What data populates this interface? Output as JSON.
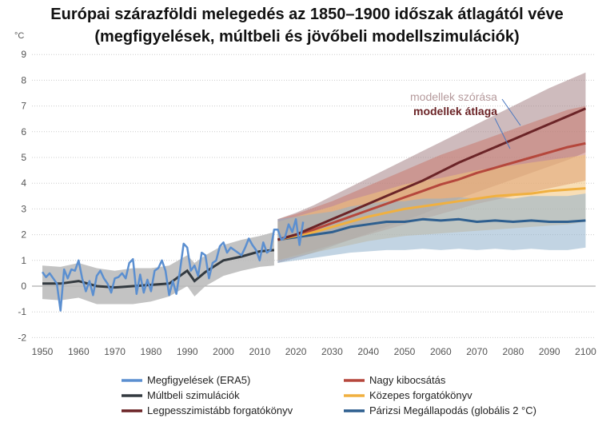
{
  "chart_data": {
    "type": "line",
    "title": "Európai szárazföldi melegedés az 1850–1900 időszak átlagától véve",
    "subtitle": "(megfigyelések, múltbeli és jövőbeli modellszimulációk)",
    "ylabel": "°C",
    "xlabel": "",
    "xlim": [
      1950,
      2100
    ],
    "ylim": [
      -2,
      9
    ],
    "xticks": [
      "1950",
      "1960",
      "1970",
      "1980",
      "1990",
      "2000",
      "2010",
      "2020",
      "2030",
      "2040",
      "2050",
      "2060",
      "2070",
      "2080",
      "2090",
      "2100"
    ],
    "yticks": [
      "-2",
      "-1",
      "0",
      "1",
      "2",
      "3",
      "4",
      "5",
      "6",
      "7",
      "8",
      "9"
    ],
    "grid": true,
    "legend_placement": "bottom",
    "annotations": {
      "spread": "modellek szórása",
      "mean": "modellek átlaga"
    },
    "observations": {
      "name": "Megfigyelések (ERA5)",
      "color": "#5b8fd0",
      "x": [
        1950,
        1951,
        1952,
        1953,
        1954,
        1955,
        1956,
        1957,
        1958,
        1959,
        1960,
        1961,
        1962,
        1963,
        1964,
        1965,
        1966,
        1967,
        1968,
        1969,
        1970,
        1971,
        1972,
        1973,
        1974,
        1975,
        1976,
        1977,
        1978,
        1979,
        1980,
        1981,
        1982,
        1983,
        1984,
        1985,
        1986,
        1987,
        1988,
        1989,
        1990,
        1991,
        1992,
        1993,
        1994,
        1995,
        1996,
        1997,
        1998,
        1999,
        2000,
        2001,
        2002,
        2003,
        2004,
        2005,
        2006,
        2007,
        2008,
        2009,
        2010,
        2011,
        2012,
        2013,
        2014,
        2015,
        2016,
        2017,
        2018,
        2019,
        2020,
        2021,
        2022
      ],
      "y": [
        0.55,
        0.35,
        0.5,
        0.3,
        0.1,
        -0.95,
        0.65,
        0.3,
        0.65,
        0.6,
        1.0,
        0.3,
        -0.2,
        0.2,
        -0.35,
        0.4,
        0.6,
        0.3,
        0.1,
        -0.25,
        0.3,
        0.35,
        0.5,
        0.3,
        0.9,
        1.05,
        -0.3,
        0.45,
        -0.25,
        0.25,
        -0.2,
        0.6,
        0.7,
        1.0,
        0.6,
        -0.35,
        0.2,
        -0.3,
        0.6,
        1.65,
        1.5,
        0.6,
        0.8,
        0.4,
        1.3,
        1.2,
        0.3,
        0.9,
        1.0,
        1.55,
        1.7,
        1.3,
        1.5,
        1.4,
        1.3,
        1.2,
        1.5,
        1.85,
        1.6,
        1.4,
        1.0,
        1.7,
        1.3,
        1.4,
        2.2,
        2.2,
        1.8,
        1.9,
        2.4,
        2.1,
        2.6,
        1.6,
        2.5
      ]
    },
    "historical": {
      "name": "Múltbeli szimulációk",
      "color": "#333a40",
      "band_color": "#b8b8b8",
      "x": [
        1950,
        1955,
        1960,
        1965,
        1970,
        1975,
        1980,
        1985,
        1990,
        1992,
        1995,
        2000,
        2005,
        2010,
        2014
      ],
      "y": [
        0.1,
        0.1,
        0.2,
        0.0,
        -0.05,
        0.0,
        0.05,
        0.1,
        0.6,
        0.2,
        0.55,
        1.0,
        1.15,
        1.35,
        1.4
      ],
      "lower": [
        -0.5,
        -0.55,
        -0.45,
        -0.7,
        -0.7,
        -0.7,
        -0.6,
        -0.4,
        0.0,
        -0.4,
        0.0,
        0.4,
        0.6,
        0.75,
        0.8
      ],
      "upper": [
        0.8,
        0.75,
        0.9,
        0.7,
        0.6,
        0.7,
        0.7,
        0.8,
        1.2,
        0.9,
        1.2,
        1.6,
        1.8,
        1.95,
        2.1
      ]
    },
    "future_x": [
      2015,
      2020,
      2025,
      2030,
      2035,
      2040,
      2045,
      2050,
      2055,
      2060,
      2065,
      2070,
      2075,
      2080,
      2085,
      2090,
      2095,
      2100
    ],
    "series": [
      {
        "name": "Párizsi Megállapodás (globális 2 °C)",
        "color": "#2e5f8f",
        "band_color": "#8fb0cc",
        "values": [
          1.8,
          1.9,
          2.0,
          2.1,
          2.3,
          2.4,
          2.5,
          2.5,
          2.6,
          2.55,
          2.6,
          2.5,
          2.55,
          2.5,
          2.55,
          2.5,
          2.5,
          2.55
        ],
        "lower": [
          0.9,
          1.0,
          1.1,
          1.2,
          1.3,
          1.35,
          1.4,
          1.4,
          1.45,
          1.4,
          1.45,
          1.4,
          1.45,
          1.4,
          1.45,
          1.4,
          1.4,
          1.5
        ],
        "upper": [
          2.6,
          2.7,
          2.8,
          2.9,
          3.1,
          3.2,
          3.3,
          3.3,
          3.4,
          3.4,
          3.45,
          3.4,
          3.45,
          3.4,
          3.5,
          3.5,
          3.5,
          3.6
        ]
      },
      {
        "name": "Közepes forgatókönyv",
        "color": "#f0b040",
        "band_color": "#f3c27a",
        "values": [
          1.8,
          1.95,
          2.1,
          2.3,
          2.5,
          2.7,
          2.85,
          3.0,
          3.1,
          3.2,
          3.3,
          3.4,
          3.5,
          3.55,
          3.6,
          3.7,
          3.75,
          3.8
        ],
        "lower": [
          1.0,
          1.15,
          1.3,
          1.45,
          1.6,
          1.75,
          1.85,
          1.95,
          2.0,
          2.05,
          2.1,
          2.15,
          2.2,
          2.25,
          2.3,
          2.35,
          2.4,
          2.5
        ],
        "upper": [
          2.5,
          2.7,
          2.9,
          3.1,
          3.35,
          3.55,
          3.75,
          3.95,
          4.1,
          4.2,
          4.35,
          4.5,
          4.6,
          4.7,
          4.8,
          4.9,
          5.0,
          5.1
        ]
      },
      {
        "name": "Nagy kibocsátás",
        "color": "#b5473c",
        "band_color": "#c87a70",
        "values": [
          1.8,
          2.0,
          2.2,
          2.45,
          2.7,
          2.95,
          3.2,
          3.45,
          3.7,
          3.95,
          4.15,
          4.4,
          4.6,
          4.8,
          5.0,
          5.2,
          5.4,
          5.55
        ],
        "lower": [
          1.0,
          1.2,
          1.4,
          1.6,
          1.8,
          2.0,
          2.2,
          2.4,
          2.6,
          2.8,
          3.0,
          3.2,
          3.35,
          3.5,
          3.65,
          3.8,
          3.95,
          4.1
        ],
        "upper": [
          2.6,
          2.8,
          3.05,
          3.3,
          3.6,
          3.9,
          4.2,
          4.5,
          4.8,
          5.1,
          5.35,
          5.6,
          5.85,
          6.1,
          6.35,
          6.6,
          6.85,
          7.0
        ]
      },
      {
        "name": "Legpesszimistább forgatókönyv",
        "color": "#6b2427",
        "band_color": "#a68486",
        "values": [
          1.8,
          2.0,
          2.3,
          2.6,
          2.9,
          3.2,
          3.5,
          3.8,
          4.1,
          4.45,
          4.8,
          5.1,
          5.4,
          5.7,
          6.0,
          6.3,
          6.6,
          6.9
        ],
        "lower": [
          0.9,
          1.1,
          1.3,
          1.55,
          1.8,
          2.05,
          2.3,
          2.55,
          2.8,
          3.1,
          3.4,
          3.65,
          3.9,
          4.15,
          4.4,
          4.65,
          4.9,
          5.2
        ],
        "upper": [
          2.6,
          2.85,
          3.15,
          3.5,
          3.85,
          4.2,
          4.55,
          4.9,
          5.25,
          5.6,
          5.95,
          6.3,
          6.65,
          7.0,
          7.35,
          7.7,
          8.0,
          8.3
        ]
      }
    ],
    "legend": [
      {
        "label": "Megfigyelések (ERA5)",
        "color": "#5b8fd0"
      },
      {
        "label": "Nagy kibocsátás",
        "color": "#b5473c"
      },
      {
        "label": "Múltbeli szimulációk",
        "color": "#333a40"
      },
      {
        "label": "Közepes forgatókönyv",
        "color": "#f0b040"
      },
      {
        "label": "Legpesszimistább forgatókönyv",
        "color": "#6b2427"
      },
      {
        "label": "Párizsi Megállapodás (globális 2 °C)",
        "color": "#2e5f8f"
      }
    ]
  }
}
